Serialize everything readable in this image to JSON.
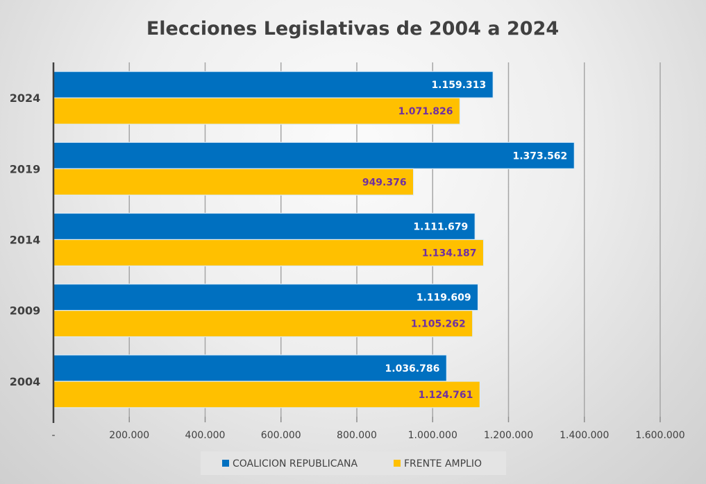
{
  "chart_data": {
    "type": "bar",
    "orientation": "horizontal",
    "title": "Elecciones Legislativas de 2004 a 2024",
    "xlabel": "",
    "ylabel": "",
    "categories": [
      "2024",
      "2019",
      "2014",
      "2009",
      "2004"
    ],
    "series": [
      {
        "name": "COALICION REPUBLICANA",
        "color": "#0070c0",
        "values": [
          1159313,
          1373562,
          1111679,
          1119609,
          1036786
        ],
        "labels": [
          "1.159.313",
          "1.373.562",
          "1.111.679",
          "1.119.609",
          "1.036.786"
        ]
      },
      {
        "name": "FRENTE AMPLIO",
        "color": "#ffc000",
        "values": [
          1071826,
          949376,
          1134187,
          1105262,
          1124761
        ],
        "labels": [
          "1.071.826",
          "949.376",
          "1.134.187",
          "1.105.262",
          "1.124.761"
        ]
      }
    ],
    "xlim": [
      0,
      1600000
    ],
    "xticks": [
      0,
      200000,
      400000,
      600000,
      800000,
      1000000,
      1200000,
      1400000,
      1600000
    ],
    "xtick_labels": [
      "-",
      "200.000",
      "400.000",
      "600.000",
      "800.000",
      "1.000.000",
      "1.200.000",
      "1.400.000",
      "1.600.000"
    ],
    "grid": true,
    "legend_position": "bottom",
    "label_colors": {
      "series_0": "#ffffff",
      "series_1": "#7030a0"
    }
  }
}
